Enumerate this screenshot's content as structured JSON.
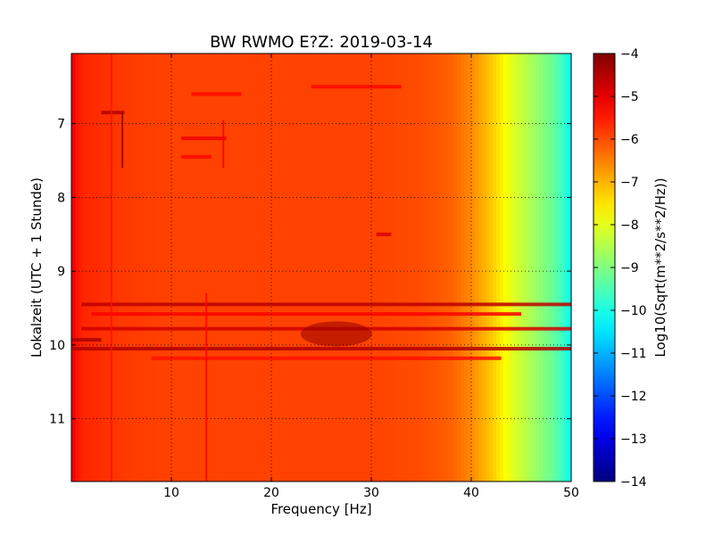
{
  "chart_data": {
    "type": "heatmap",
    "title": "BW RWMO E?Z: 2019-03-14",
    "xlabel": "Frequency [Hz]",
    "ylabel": "Lokalzeit (UTC + 1 Stunde)",
    "xlim": [
      0,
      50
    ],
    "ylim": [
      11.85,
      6.05
    ],
    "x_ticks": [
      10,
      20,
      30,
      40,
      50
    ],
    "x_tick_labels": [
      "10",
      "20",
      "30",
      "40",
      "50"
    ],
    "y_ticks": [
      7,
      8,
      9,
      10,
      11
    ],
    "y_tick_labels": [
      "7",
      "8",
      "9",
      "10",
      "11"
    ],
    "grid": true,
    "colorbar": {
      "label": "Log10(Sqrt(m**2/s**2/Hz))",
      "range": [
        -14,
        -4
      ],
      "ticks": [
        -4,
        -5,
        -6,
        -7,
        -8,
        -9,
        -10,
        -11,
        -12,
        -13,
        -14
      ],
      "tick_labels": [
        "−4",
        "−5",
        "−6",
        "−7",
        "−8",
        "−9",
        "−10",
        "−11",
        "−12",
        "−13",
        "−14"
      ],
      "colormap": "jet"
    },
    "spectrum_profile": {
      "frequency_hz": [
        0,
        0.5,
        1,
        5,
        10,
        20,
        30,
        35,
        38,
        40,
        42,
        43,
        44,
        45,
        46,
        47,
        48,
        49,
        50
      ],
      "level": [
        -5.0,
        -5.4,
        -5.6,
        -5.8,
        -5.9,
        -5.9,
        -5.9,
        -6.0,
        -6.2,
        -6.6,
        -7.2,
        -7.6,
        -8.0,
        -8.3,
        -8.6,
        -8.9,
        -9.2,
        -9.6,
        -10.2
      ]
    },
    "horizontal_events": [
      {
        "time": 9.45,
        "x_from": 1,
        "x_to": 50,
        "level": -4.6
      },
      {
        "time": 9.78,
        "x_from": 1,
        "x_to": 50,
        "level": -4.8
      },
      {
        "time": 9.93,
        "x_from": 0,
        "x_to": 3,
        "level": -4.4
      },
      {
        "time": 10.05,
        "x_from": 0,
        "x_to": 50,
        "level": -4.5
      },
      {
        "time": 9.58,
        "x_from": 2,
        "x_to": 45,
        "level": -5.2
      },
      {
        "time": 10.18,
        "x_from": 8,
        "x_to": 43,
        "level": -5.4
      },
      {
        "time": 6.85,
        "x_from": 3,
        "x_to": 5.3,
        "level": -4.5
      },
      {
        "time": 7.2,
        "x_from": 11,
        "x_to": 15.5,
        "level": -5.1
      },
      {
        "time": 7.45,
        "x_from": 11,
        "x_to": 14,
        "level": -5.3
      },
      {
        "time": 8.5,
        "x_from": 30.5,
        "x_to": 32,
        "level": -4.9
      },
      {
        "time": 6.5,
        "x_from": 24,
        "x_to": 33,
        "level": -5.3
      },
      {
        "time": 6.6,
        "x_from": 12,
        "x_to": 17,
        "level": -5.3
      }
    ],
    "blob": {
      "frequency_hz": 26.5,
      "time": 9.85,
      "level": -4.2
    },
    "vertical_events": [
      {
        "frequency_hz": 5.1,
        "t_from": 6.85,
        "t_to": 7.6,
        "level": -4.2
      },
      {
        "frequency_hz": 15.2,
        "t_from": 6.95,
        "t_to": 7.6,
        "level": -5.1
      },
      {
        "frequency_hz": 13.5,
        "t_from": 9.3,
        "t_to": 11.85,
        "level": -5.2
      },
      {
        "frequency_hz": 4.0,
        "t_from": 6.05,
        "t_to": 11.85,
        "level": -5.4
      }
    ]
  }
}
